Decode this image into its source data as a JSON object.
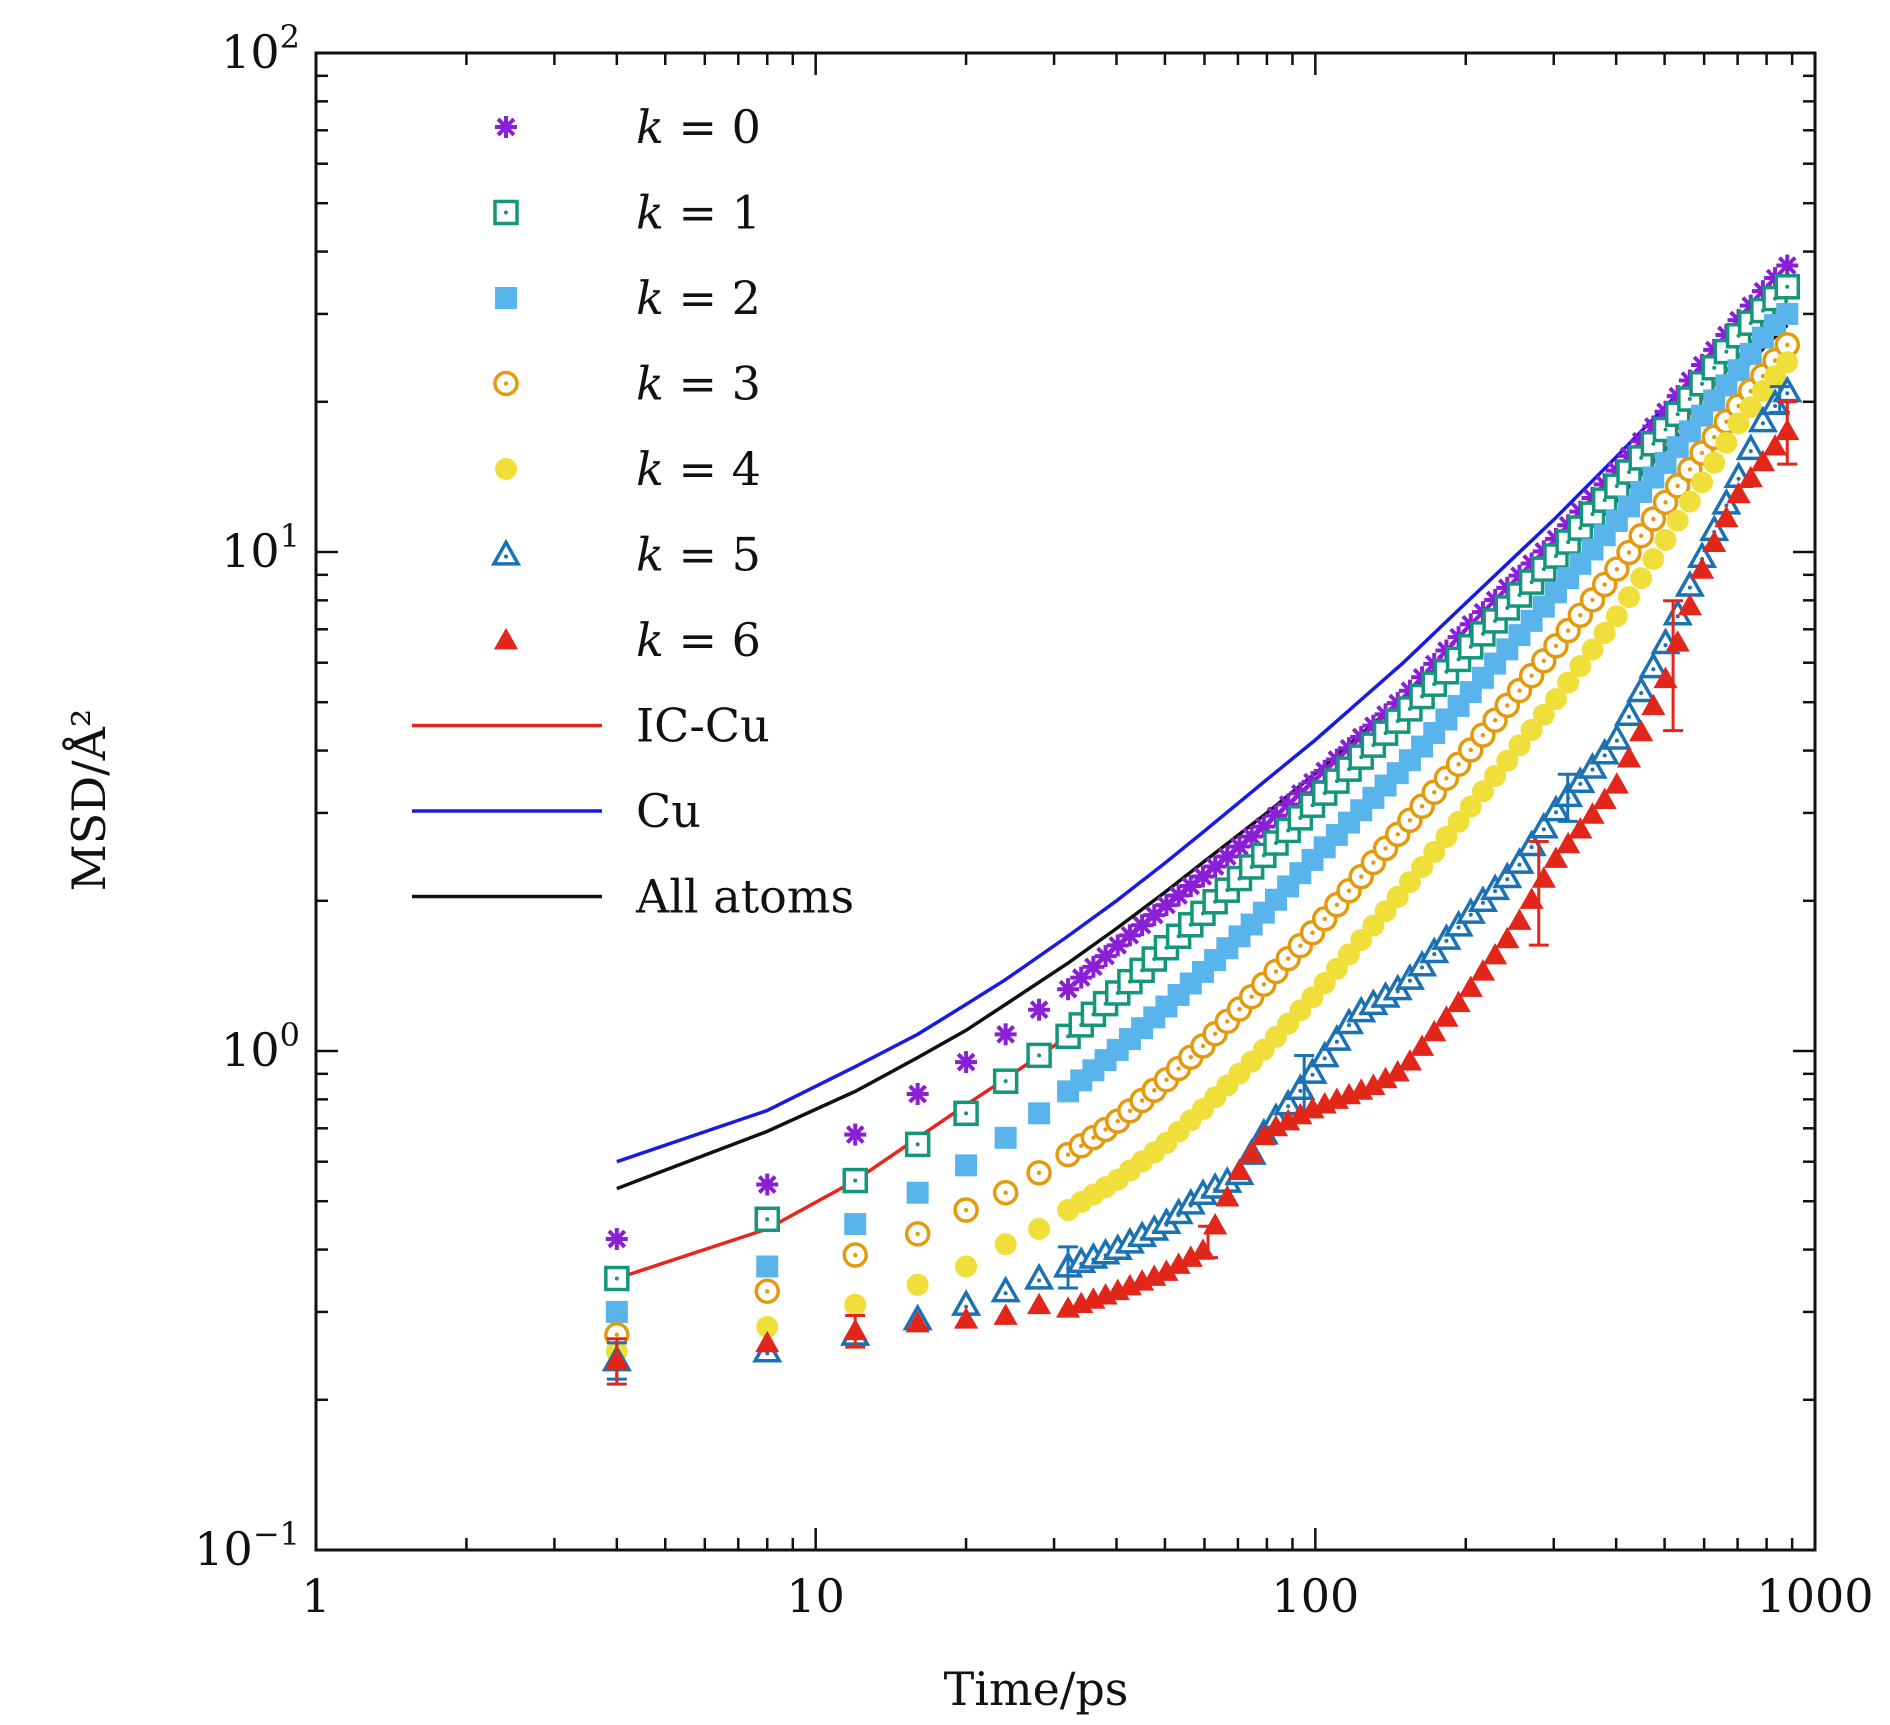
{
  "chart_data": {
    "type": "scatter",
    "title": "",
    "xlabel": "Time/ps",
    "ylabel": "MSD/Å²",
    "xscale": "log",
    "yscale": "log",
    "xlim": [
      1,
      1000
    ],
    "ylim": [
      0.1,
      100
    ],
    "x_tick_labels": [
      "1",
      "10",
      "100",
      "1000"
    ],
    "y_tick_labels": [
      {
        "base": "10",
        "exp": "−1"
      },
      {
        "base": "10",
        "exp": "0"
      },
      {
        "base": "10",
        "exp": "1"
      },
      {
        "base": "10",
        "exp": "2"
      }
    ],
    "legend_position": "top-left",
    "grid": false,
    "series": [
      {
        "name": "k = 0",
        "label_var": "k",
        "label_value": "0",
        "marker": "asterisk",
        "color": "#8b1fd6",
        "points": [
          [
            4,
            0.42
          ],
          [
            8,
            0.54
          ],
          [
            12,
            0.68
          ],
          [
            16,
            0.82
          ],
          [
            20,
            0.95
          ],
          [
            24,
            1.08
          ],
          [
            28,
            1.21
          ],
          [
            32,
            1.33
          ],
          [
            40,
            1.62
          ],
          [
            50,
            1.95
          ],
          [
            60,
            2.25
          ],
          [
            80,
            2.85
          ],
          [
            100,
            3.5
          ],
          [
            150,
            5.1
          ],
          [
            200,
            7.0
          ],
          [
            300,
            10.5
          ],
          [
            400,
            14.5
          ],
          [
            500,
            19.0
          ],
          [
            600,
            24.0
          ],
          [
            700,
            29.0
          ],
          [
            800,
            34.0
          ],
          [
            880,
            37.5
          ]
        ]
      },
      {
        "name": "k = 1",
        "label_var": "k",
        "label_value": "1",
        "marker": "open-square-dot",
        "color": "#14967a",
        "points": [
          [
            4,
            0.35
          ],
          [
            8,
            0.46
          ],
          [
            12,
            0.55
          ],
          [
            16,
            0.65
          ],
          [
            20,
            0.75
          ],
          [
            24,
            0.87
          ],
          [
            28,
            0.98
          ],
          [
            32,
            1.07
          ],
          [
            40,
            1.3
          ],
          [
            50,
            1.6
          ],
          [
            60,
            1.9
          ],
          [
            80,
            2.5
          ],
          [
            100,
            3.15
          ],
          [
            150,
            4.7
          ],
          [
            200,
            6.3
          ],
          [
            300,
            9.7
          ],
          [
            400,
            13.5
          ],
          [
            500,
            17.5
          ],
          [
            600,
            22.0
          ],
          [
            700,
            27.0
          ],
          [
            800,
            31.0
          ],
          [
            880,
            34.0
          ]
        ]
      },
      {
        "name": "k = 2",
        "label_var": "k",
        "label_value": "2",
        "marker": "filled-square",
        "color": "#5ab4ec",
        "points": [
          [
            4,
            0.3
          ],
          [
            8,
            0.37
          ],
          [
            12,
            0.45
          ],
          [
            16,
            0.52
          ],
          [
            20,
            0.59
          ],
          [
            24,
            0.67
          ],
          [
            28,
            0.75
          ],
          [
            32,
            0.83
          ],
          [
            40,
            1.0
          ],
          [
            50,
            1.22
          ],
          [
            60,
            1.45
          ],
          [
            80,
            1.92
          ],
          [
            100,
            2.45
          ],
          [
            150,
            3.7
          ],
          [
            200,
            5.1
          ],
          [
            300,
            8.2
          ],
          [
            400,
            11.5
          ],
          [
            500,
            15.0
          ],
          [
            600,
            19.0
          ],
          [
            700,
            23.0
          ],
          [
            800,
            27.5
          ],
          [
            880,
            30.0
          ]
        ]
      },
      {
        "name": "k = 3",
        "label_var": "k",
        "label_value": "3",
        "marker": "open-circle-dot",
        "color": "#e39a0d",
        "points": [
          [
            4,
            0.27
          ],
          [
            8,
            0.33
          ],
          [
            12,
            0.39
          ],
          [
            16,
            0.43
          ],
          [
            20,
            0.48
          ],
          [
            24,
            0.52
          ],
          [
            28,
            0.57
          ],
          [
            32,
            0.62
          ],
          [
            40,
            0.72
          ],
          [
            50,
            0.87
          ],
          [
            60,
            1.03
          ],
          [
            80,
            1.38
          ],
          [
            100,
            1.75
          ],
          [
            150,
            2.8
          ],
          [
            200,
            3.9
          ],
          [
            300,
            6.4
          ],
          [
            400,
            9.2
          ],
          [
            500,
            12.5
          ],
          [
            600,
            16.0
          ],
          [
            700,
            19.5
          ],
          [
            800,
            23.0
          ],
          [
            880,
            26.0
          ]
        ]
      },
      {
        "name": "k = 4",
        "label_var": "k",
        "label_value": "4",
        "marker": "filled-circle",
        "color": "#f0de3a",
        "points": [
          [
            4,
            0.25
          ],
          [
            8,
            0.28
          ],
          [
            12,
            0.31
          ],
          [
            16,
            0.34
          ],
          [
            20,
            0.37
          ],
          [
            24,
            0.41
          ],
          [
            28,
            0.44
          ],
          [
            32,
            0.48
          ],
          [
            40,
            0.55
          ],
          [
            50,
            0.65
          ],
          [
            60,
            0.77
          ],
          [
            80,
            1.02
          ],
          [
            100,
            1.3
          ],
          [
            150,
            2.1
          ],
          [
            200,
            3.0
          ],
          [
            300,
            5.0
          ],
          [
            400,
            7.4
          ],
          [
            500,
            10.5
          ],
          [
            600,
            14.0
          ],
          [
            700,
            18.0
          ],
          [
            800,
            21.5
          ],
          [
            880,
            24.0
          ]
        ]
      },
      {
        "name": "k = 5",
        "label_var": "k",
        "label_value": "5",
        "marker": "open-triangle-dot",
        "color": "#1a71b3",
        "points": [
          [
            4,
            0.24
          ],
          [
            8,
            0.25
          ],
          [
            12,
            0.27
          ],
          [
            16,
            0.29
          ],
          [
            20,
            0.31
          ],
          [
            24,
            0.33
          ],
          [
            28,
            0.35
          ],
          [
            32,
            0.37
          ],
          [
            40,
            0.4
          ],
          [
            50,
            0.45
          ],
          [
            60,
            0.52
          ],
          [
            70,
            0.56
          ],
          [
            80,
            0.7
          ],
          [
            90,
            0.8
          ],
          [
            100,
            0.92
          ],
          [
            120,
            1.18
          ],
          [
            150,
            1.35
          ],
          [
            200,
            1.85
          ],
          [
            250,
            2.3
          ],
          [
            300,
            3.0
          ],
          [
            400,
            4.2
          ],
          [
            500,
            6.5
          ],
          [
            600,
            10.0
          ],
          [
            700,
            14.0
          ],
          [
            800,
            19.0
          ],
          [
            880,
            21.0
          ]
        ],
        "error_bars": [
          [
            4,
            0.02
          ],
          [
            32,
            0.035
          ],
          [
            95,
            0.12
          ],
          [
            320,
            0.35
          ],
          [
            850,
            1.2
          ]
        ]
      },
      {
        "name": "k = 6",
        "label_var": "k",
        "label_value": "6",
        "marker": "filled-triangle",
        "color": "#e3261a",
        "points": [
          [
            4,
            0.24
          ],
          [
            8,
            0.26
          ],
          [
            12,
            0.275
          ],
          [
            16,
            0.285
          ],
          [
            20,
            0.29
          ],
          [
            24,
            0.295
          ],
          [
            28,
            0.31
          ],
          [
            32,
            0.305
          ],
          [
            40,
            0.33
          ],
          [
            50,
            0.36
          ],
          [
            60,
            0.4
          ],
          [
            70,
            0.57
          ],
          [
            80,
            0.69
          ],
          [
            100,
            0.77
          ],
          [
            130,
            0.85
          ],
          [
            150,
            0.92
          ],
          [
            200,
            1.3
          ],
          [
            250,
            1.75
          ],
          [
            300,
            2.4
          ],
          [
            400,
            3.4
          ],
          [
            500,
            5.5
          ],
          [
            600,
            9.5
          ],
          [
            700,
            13.0
          ],
          [
            800,
            15.5
          ],
          [
            880,
            17.5
          ]
        ],
        "error_bars": [
          [
            4,
            0.025
          ],
          [
            12,
            0.02
          ],
          [
            61,
            0.03
          ],
          [
            280,
            0.5
          ],
          [
            520,
            1.8
          ],
          [
            880,
            2.5
          ]
        ]
      },
      {
        "name": "IC-Cu",
        "marker": "line",
        "color": "#e8251a",
        "points": [
          [
            4,
            0.35
          ],
          [
            8,
            0.44
          ],
          [
            12,
            0.55
          ],
          [
            16,
            0.67
          ],
          [
            20,
            0.78
          ],
          [
            24,
            0.88
          ],
          [
            32,
            1.07
          ],
          [
            40,
            1.28
          ],
          [
            50,
            1.55
          ],
          [
            60,
            1.85
          ],
          [
            80,
            2.4
          ],
          [
            100,
            3.0
          ],
          [
            150,
            4.5
          ],
          [
            200,
            6.0
          ],
          [
            300,
            9.3
          ],
          [
            400,
            12.6
          ],
          [
            500,
            16.5
          ],
          [
            600,
            20.5
          ],
          [
            700,
            24.5
          ],
          [
            800,
            28.5
          ],
          [
            880,
            31.5
          ]
        ]
      },
      {
        "name": "Cu",
        "marker": "line",
        "color": "#1a1ae6",
        "points": [
          [
            4,
            0.6
          ],
          [
            8,
            0.76
          ],
          [
            12,
            0.93
          ],
          [
            16,
            1.08
          ],
          [
            20,
            1.24
          ],
          [
            24,
            1.39
          ],
          [
            32,
            1.7
          ],
          [
            40,
            2.0
          ],
          [
            50,
            2.38
          ],
          [
            60,
            2.76
          ],
          [
            80,
            3.5
          ],
          [
            100,
            4.2
          ],
          [
            150,
            6.0
          ],
          [
            200,
            7.9
          ],
          [
            300,
            11.6
          ],
          [
            400,
            15.5
          ],
          [
            500,
            19.5
          ],
          [
            600,
            23.5
          ],
          [
            700,
            27.5
          ],
          [
            800,
            32.0
          ],
          [
            880,
            35.5
          ]
        ]
      },
      {
        "name": "All atoms",
        "marker": "line",
        "color": "#111111",
        "points": [
          [
            4,
            0.53
          ],
          [
            8,
            0.69
          ],
          [
            12,
            0.83
          ],
          [
            16,
            0.97
          ],
          [
            20,
            1.1
          ],
          [
            24,
            1.24
          ],
          [
            32,
            1.5
          ],
          [
            40,
            1.76
          ],
          [
            50,
            2.08
          ],
          [
            60,
            2.4
          ],
          [
            80,
            3.0
          ],
          [
            100,
            3.6
          ],
          [
            150,
            5.1
          ],
          [
            200,
            6.6
          ],
          [
            300,
            9.6
          ],
          [
            400,
            12.7
          ],
          [
            500,
            16.0
          ],
          [
            600,
            19.3
          ],
          [
            700,
            22.5
          ],
          [
            800,
            26.0
          ],
          [
            880,
            28.5
          ]
        ]
      }
    ]
  }
}
